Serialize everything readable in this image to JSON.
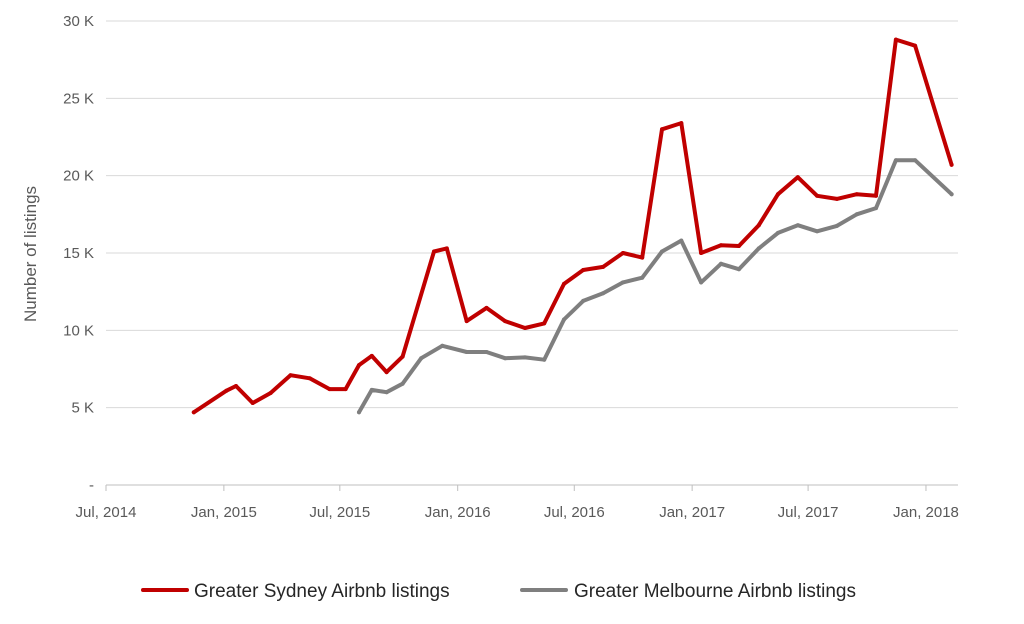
{
  "chart_data": {
    "type": "line",
    "ylabel": "Number of listings",
    "xlabel": "",
    "ylim": [
      0,
      30000
    ],
    "y_ticks": [
      {
        "value": 0,
        "label": "-"
      },
      {
        "value": 5000,
        "label": "5 K"
      },
      {
        "value": 10000,
        "label": "10 K"
      },
      {
        "value": 15000,
        "label": "15 K"
      },
      {
        "value": 20000,
        "label": "20 K"
      },
      {
        "value": 25000,
        "label": "25 K"
      },
      {
        "value": 30000,
        "label": "30 K"
      }
    ],
    "x_range": [
      "2014-07-01",
      "2018-02-20"
    ],
    "x_ticks": [
      {
        "date": "2014-07-01",
        "label": "Jul, 2014"
      },
      {
        "date": "2015-01-01",
        "label": "Jan, 2015"
      },
      {
        "date": "2015-07-01",
        "label": "Jul, 2015"
      },
      {
        "date": "2016-01-01",
        "label": "Jan, 2016"
      },
      {
        "date": "2016-07-01",
        "label": "Jul, 2016"
      },
      {
        "date": "2017-01-01",
        "label": "Jan, 2017"
      },
      {
        "date": "2017-07-01",
        "label": "Jul, 2017"
      },
      {
        "date": "2018-01-01",
        "label": "Jan, 2018"
      }
    ],
    "grid": true,
    "legend_position": "bottom",
    "series": [
      {
        "name": "Greater Sydney Airbnb listings",
        "color": "#c00000",
        "points": [
          [
            "2014-11-15",
            4700
          ],
          [
            "2015-01-05",
            6100
          ],
          [
            "2015-01-20",
            6400
          ],
          [
            "2015-02-15",
            5300
          ],
          [
            "2015-03-15",
            5950
          ],
          [
            "2015-04-15",
            7100
          ],
          [
            "2015-05-15",
            6900
          ],
          [
            "2015-06-15",
            6200
          ],
          [
            "2015-07-10",
            6200
          ],
          [
            "2015-07-31",
            7750
          ],
          [
            "2015-08-20",
            8350
          ],
          [
            "2015-09-12",
            7300
          ],
          [
            "2015-10-07",
            8300
          ],
          [
            "2015-11-25",
            15100
          ],
          [
            "2015-12-15",
            15300
          ],
          [
            "2016-01-15",
            10600
          ],
          [
            "2016-02-15",
            11450
          ],
          [
            "2016-03-15",
            10600
          ],
          [
            "2016-04-15",
            10150
          ],
          [
            "2016-05-15",
            10450
          ],
          [
            "2016-06-15",
            13000
          ],
          [
            "2016-07-15",
            13900
          ],
          [
            "2016-08-15",
            14100
          ],
          [
            "2016-09-15",
            15000
          ],
          [
            "2016-10-15",
            14700
          ],
          [
            "2016-11-15",
            23000
          ],
          [
            "2016-12-15",
            23400
          ],
          [
            "2017-01-15",
            15000
          ],
          [
            "2017-02-15",
            15500
          ],
          [
            "2017-03-15",
            15450
          ],
          [
            "2017-04-15",
            16800
          ],
          [
            "2017-05-15",
            18800
          ],
          [
            "2017-06-15",
            19900
          ],
          [
            "2017-07-15",
            18700
          ],
          [
            "2017-08-15",
            18500
          ],
          [
            "2017-09-15",
            18800
          ],
          [
            "2017-10-15",
            18700
          ],
          [
            "2017-11-15",
            28800
          ],
          [
            "2017-12-15",
            28400
          ],
          [
            "2018-02-10",
            20700
          ]
        ]
      },
      {
        "name": "Greater Melbourne Airbnb listings",
        "color": "#7f7f7f",
        "points": [
          [
            "2015-07-31",
            4700
          ],
          [
            "2015-08-20",
            6150
          ],
          [
            "2015-09-12",
            6000
          ],
          [
            "2015-10-07",
            6550
          ],
          [
            "2015-11-05",
            8200
          ],
          [
            "2015-12-08",
            9000
          ],
          [
            "2016-01-15",
            8600
          ],
          [
            "2016-02-15",
            8600
          ],
          [
            "2016-03-15",
            8200
          ],
          [
            "2016-04-15",
            8250
          ],
          [
            "2016-05-15",
            8100
          ],
          [
            "2016-06-15",
            10700
          ],
          [
            "2016-07-15",
            11900
          ],
          [
            "2016-08-15",
            12400
          ],
          [
            "2016-09-15",
            13100
          ],
          [
            "2016-10-15",
            13400
          ],
          [
            "2016-11-15",
            15100
          ],
          [
            "2016-12-15",
            15800
          ],
          [
            "2017-01-15",
            13100
          ],
          [
            "2017-02-15",
            14300
          ],
          [
            "2017-03-15",
            13950
          ],
          [
            "2017-04-15",
            15300
          ],
          [
            "2017-05-15",
            16300
          ],
          [
            "2017-06-15",
            16800
          ],
          [
            "2017-07-15",
            16400
          ],
          [
            "2017-08-15",
            16750
          ],
          [
            "2017-09-15",
            17500
          ],
          [
            "2017-10-15",
            17900
          ],
          [
            "2017-11-15",
            21000
          ],
          [
            "2017-12-15",
            21000
          ],
          [
            "2018-02-10",
            18800
          ]
        ]
      }
    ]
  }
}
